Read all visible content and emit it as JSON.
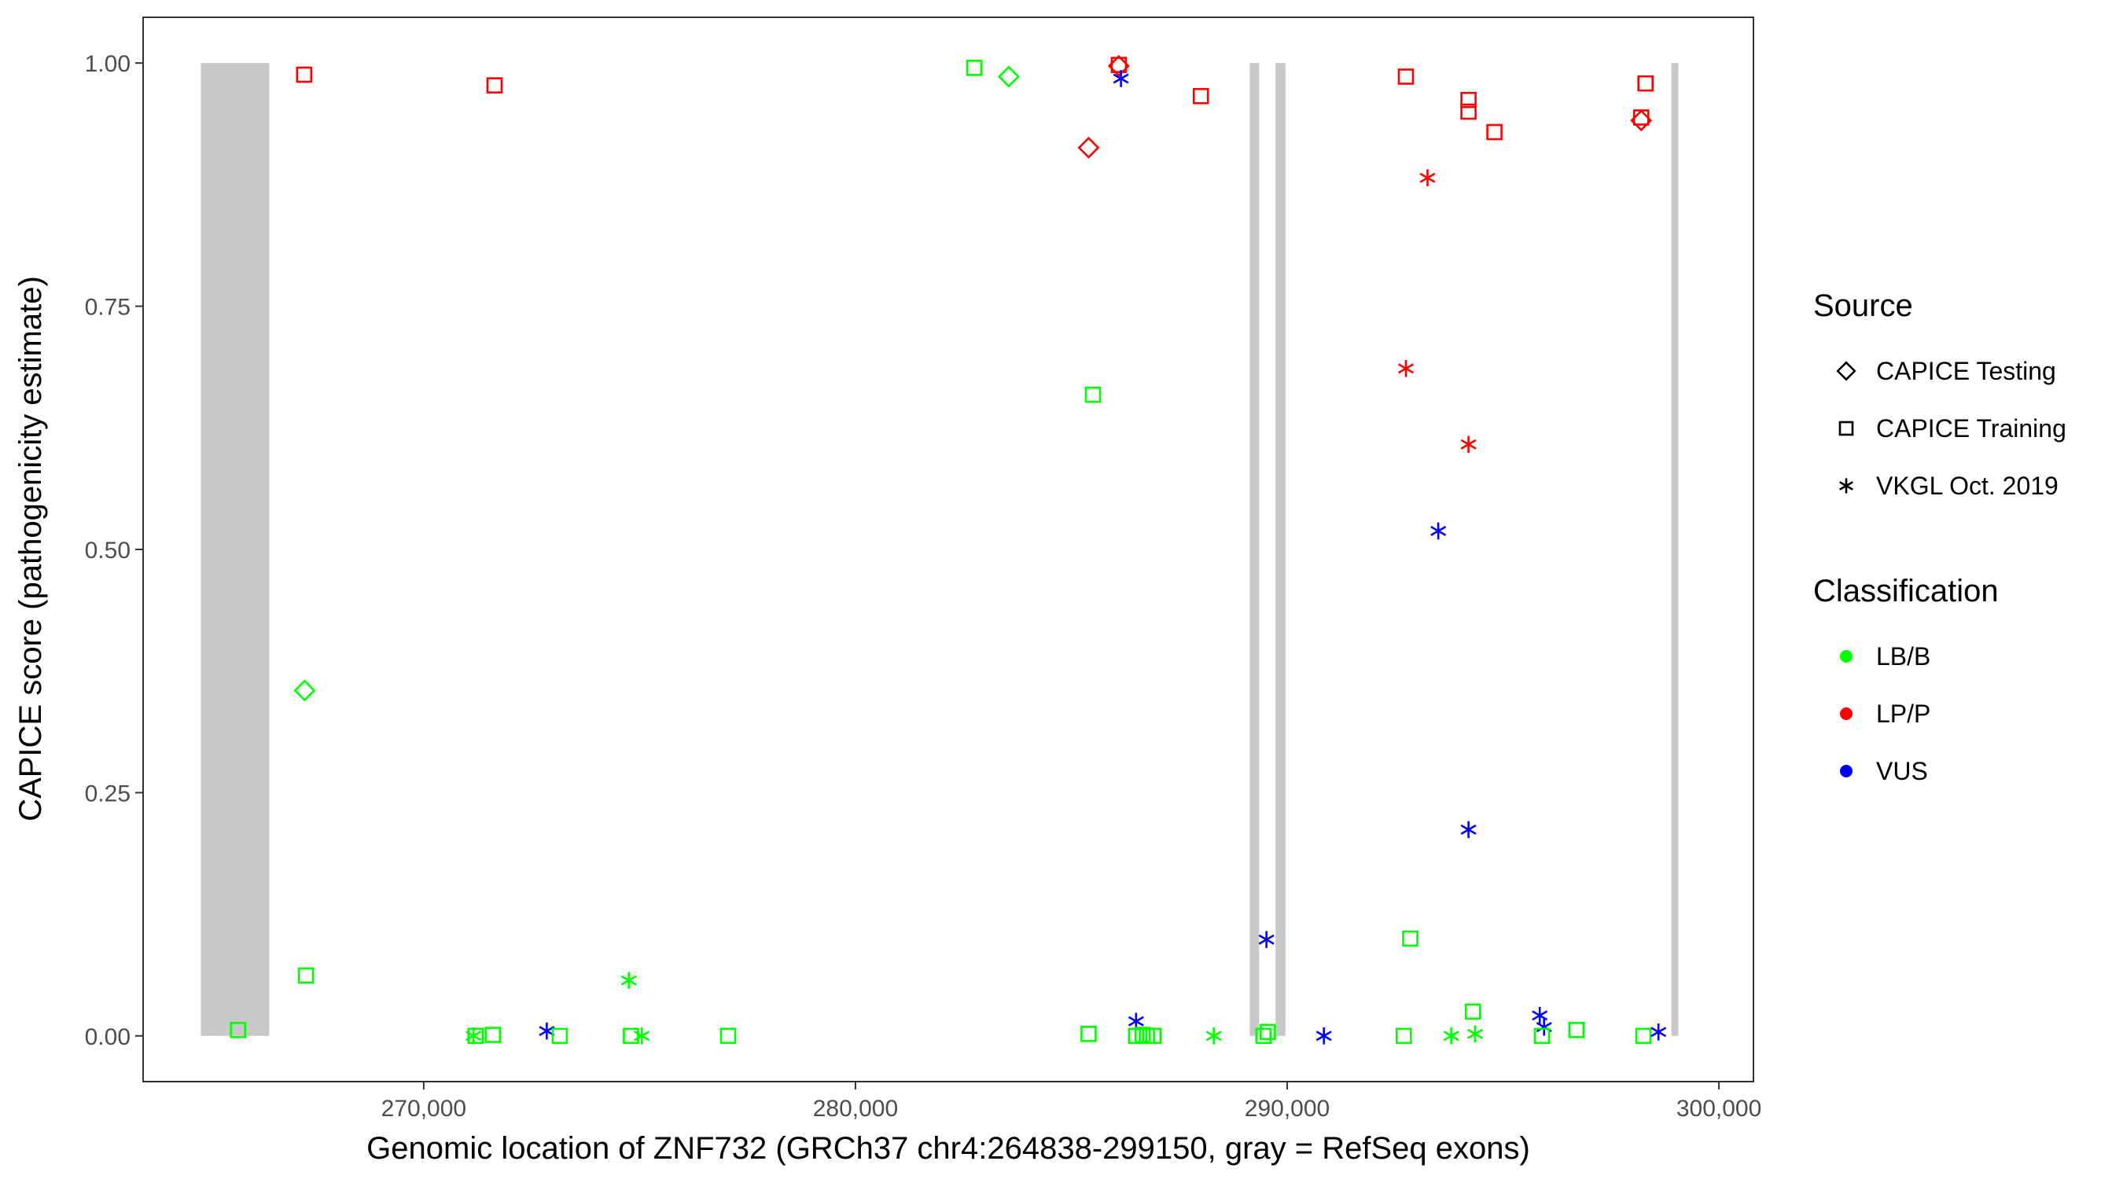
{
  "chart_data": {
    "type": "scatter",
    "xlabel": "Genomic location of ZNF732 (GRCh37 chr4:264838-299150, gray = RefSeq exons)",
    "ylabel": "CAPICE score (pathogenicity estimate)",
    "xlim": [
      263500,
      300800
    ],
    "ylim": [
      -0.047,
      1.047
    ],
    "x_ticks": [
      270000,
      280000,
      290000,
      300000
    ],
    "x_tick_labels": [
      "270,000",
      "280,000",
      "290,000",
      "300,000"
    ],
    "y_ticks": [
      0,
      0.25,
      0.5,
      0.75,
      1.0
    ],
    "y_tick_labels": [
      "0.00",
      "0.25",
      "0.50",
      "0.75",
      "1.00"
    ],
    "grid": false,
    "legend_position": "right",
    "exons": [
      {
        "start": 264838,
        "end": 266420
      },
      {
        "start": 289130,
        "end": 289350
      },
      {
        "start": 289730,
        "end": 289960
      },
      {
        "start": 298900,
        "end": 299060
      }
    ],
    "colors": {
      "LB/B": "#00FF00",
      "LP/P": "#FF0000",
      "VUS": "#0000FF",
      "exon": "#C8C8C8",
      "frame": "#333333"
    },
    "legends": [
      {
        "title": "Source",
        "entries": [
          {
            "label": "CAPICE Testing",
            "shape": "diamond"
          },
          {
            "label": "CAPICE Training",
            "shape": "square"
          },
          {
            "label": "VKGL Oct. 2019",
            "shape": "asterisk"
          }
        ]
      },
      {
        "title": "Classification",
        "entries": [
          {
            "label": "LB/B",
            "shape": "circle"
          },
          {
            "label": "LP/P",
            "shape": "circle"
          },
          {
            "label": "VUS",
            "shape": "circle"
          }
        ]
      }
    ],
    "points": [
      {
        "x": 265700,
        "y": 0.006,
        "source": "CAPICE Training",
        "class": "LB/B"
      },
      {
        "x": 267240,
        "y": 0.355,
        "source": "CAPICE Testing",
        "class": "LB/B"
      },
      {
        "x": 267270,
        "y": 0.062,
        "source": "CAPICE Training",
        "class": "LB/B"
      },
      {
        "x": 267230,
        "y": 0.988,
        "source": "CAPICE Training",
        "class": "LP/P"
      },
      {
        "x": 271640,
        "y": 0.977,
        "source": "CAPICE Training",
        "class": "LP/P"
      },
      {
        "x": 271150,
        "y": 0.0,
        "source": "VKGL Oct. 2019",
        "class": "LB/B"
      },
      {
        "x": 271200,
        "y": 0.0,
        "source": "CAPICE Training",
        "class": "LB/B"
      },
      {
        "x": 271600,
        "y": 0.001,
        "source": "CAPICE Training",
        "class": "LB/B"
      },
      {
        "x": 272850,
        "y": 0.005,
        "source": "VKGL Oct. 2019",
        "class": "VUS"
      },
      {
        "x": 273150,
        "y": 0.0,
        "source": "CAPICE Training",
        "class": "LB/B"
      },
      {
        "x": 274750,
        "y": 0.057,
        "source": "VKGL Oct. 2019",
        "class": "LB/B"
      },
      {
        "x": 274800,
        "y": 0.0,
        "source": "CAPICE Training",
        "class": "LB/B"
      },
      {
        "x": 275050,
        "y": 0.0,
        "source": "VKGL Oct. 2019",
        "class": "LB/B"
      },
      {
        "x": 277050,
        "y": 0.0,
        "source": "CAPICE Training",
        "class": "LB/B"
      },
      {
        "x": 282750,
        "y": 0.995,
        "source": "CAPICE Training",
        "class": "LB/B"
      },
      {
        "x": 283550,
        "y": 0.986,
        "source": "CAPICE Testing",
        "class": "LB/B"
      },
      {
        "x": 285400,
        "y": 0.913,
        "source": "CAPICE Testing",
        "class": "LP/P"
      },
      {
        "x": 285500,
        "y": 0.659,
        "source": "CAPICE Training",
        "class": "LB/B"
      },
      {
        "x": 285400,
        "y": 0.002,
        "source": "CAPICE Training",
        "class": "LB/B"
      },
      {
        "x": 286100,
        "y": 0.998,
        "source": "CAPICE Training",
        "class": "LP/P"
      },
      {
        "x": 286100,
        "y": 0.997,
        "source": "CAPICE Testing",
        "class": "LP/P"
      },
      {
        "x": 286150,
        "y": 0.984,
        "source": "VKGL Oct. 2019",
        "class": "VUS"
      },
      {
        "x": 286500,
        "y": 0.015,
        "source": "VKGL Oct. 2019",
        "class": "VUS"
      },
      {
        "x": 286500,
        "y": 0.0,
        "source": "CAPICE Training",
        "class": "LB/B"
      },
      {
        "x": 286650,
        "y": 0.001,
        "source": "CAPICE Training",
        "class": "LB/B"
      },
      {
        "x": 286750,
        "y": 0.0,
        "source": "CAPICE Training",
        "class": "LB/B"
      },
      {
        "x": 286900,
        "y": 0.0,
        "source": "CAPICE Training",
        "class": "LB/B"
      },
      {
        "x": 288000,
        "y": 0.966,
        "source": "CAPICE Training",
        "class": "LP/P"
      },
      {
        "x": 288300,
        "y": 0.0,
        "source": "VKGL Oct. 2019",
        "class": "LB/B"
      },
      {
        "x": 289550,
        "y": 0.004,
        "source": "CAPICE Training",
        "class": "LB/B"
      },
      {
        "x": 289450,
        "y": 0.0,
        "source": "CAPICE Training",
        "class": "LB/B"
      },
      {
        "x": 289520,
        "y": 0.099,
        "source": "VKGL Oct. 2019",
        "class": "VUS"
      },
      {
        "x": 290850,
        "y": 0.0,
        "source": "VKGL Oct. 2019",
        "class": "VUS"
      },
      {
        "x": 292750,
        "y": 0.986,
        "source": "CAPICE Training",
        "class": "LP/P"
      },
      {
        "x": 292750,
        "y": 0.686,
        "source": "VKGL Oct. 2019",
        "class": "LP/P"
      },
      {
        "x": 292850,
        "y": 0.1,
        "source": "CAPICE Training",
        "class": "LB/B"
      },
      {
        "x": 292700,
        "y": 0.0,
        "source": "CAPICE Training",
        "class": "LB/B"
      },
      {
        "x": 293250,
        "y": 0.882,
        "source": "VKGL Oct. 2019",
        "class": "LP/P"
      },
      {
        "x": 293500,
        "y": 0.519,
        "source": "VKGL Oct. 2019",
        "class": "VUS"
      },
      {
        "x": 293800,
        "y": 0.0,
        "source": "VKGL Oct. 2019",
        "class": "LB/B"
      },
      {
        "x": 294200,
        "y": 0.962,
        "source": "CAPICE Training",
        "class": "LP/P"
      },
      {
        "x": 294200,
        "y": 0.95,
        "source": "CAPICE Training",
        "class": "LP/P"
      },
      {
        "x": 294200,
        "y": 0.608,
        "source": "VKGL Oct. 2019",
        "class": "LP/P"
      },
      {
        "x": 294200,
        "y": 0.212,
        "source": "VKGL Oct. 2019",
        "class": "VUS"
      },
      {
        "x": 294300,
        "y": 0.025,
        "source": "CAPICE Training",
        "class": "LB/B"
      },
      {
        "x": 294350,
        "y": 0.002,
        "source": "VKGL Oct. 2019",
        "class": "LB/B"
      },
      {
        "x": 294800,
        "y": 0.929,
        "source": "CAPICE Training",
        "class": "LP/P"
      },
      {
        "x": 295850,
        "y": 0.021,
        "source": "VKGL Oct. 2019",
        "class": "VUS"
      },
      {
        "x": 295950,
        "y": 0.009,
        "source": "VKGL Oct. 2019",
        "class": "VUS"
      },
      {
        "x": 295900,
        "y": 0.0,
        "source": "CAPICE Training",
        "class": "LB/B"
      },
      {
        "x": 296700,
        "y": 0.006,
        "source": "CAPICE Training",
        "class": "LB/B"
      },
      {
        "x": 298200,
        "y": 0.944,
        "source": "CAPICE Training",
        "class": "LP/P"
      },
      {
        "x": 298200,
        "y": 0.941,
        "source": "CAPICE Testing",
        "class": "LP/P"
      },
      {
        "x": 298300,
        "y": 0.979,
        "source": "CAPICE Training",
        "class": "LP/P"
      },
      {
        "x": 298250,
        "y": 0.0,
        "source": "CAPICE Training",
        "class": "LB/B"
      },
      {
        "x": 298600,
        "y": 0.004,
        "source": "VKGL Oct. 2019",
        "class": "VUS"
      }
    ]
  }
}
